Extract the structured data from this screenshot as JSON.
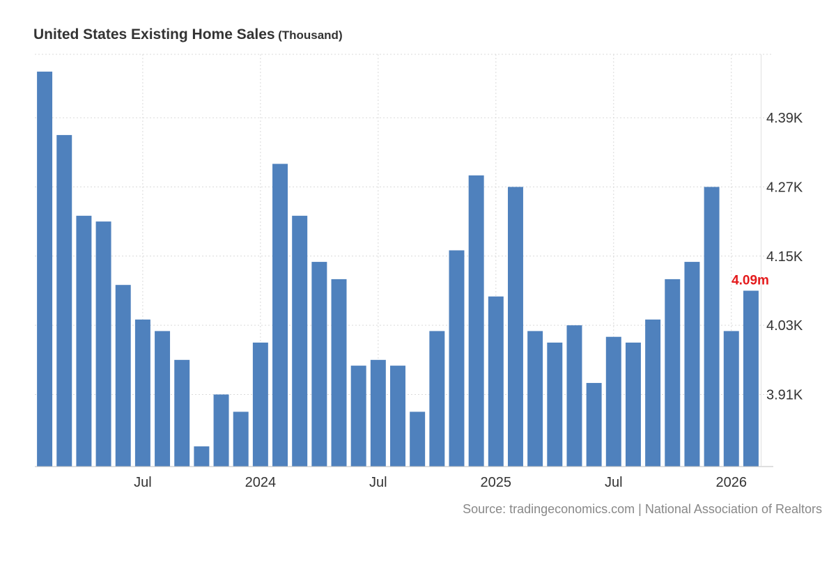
{
  "header": {
    "title": "United States Existing Home Sales",
    "unit": "(Thousand)"
  },
  "source": "Source: tradingeconomics.com | National Association of Realtors",
  "chart_data": {
    "type": "bar",
    "title": "United States Existing Home Sales",
    "unit": "(Thousand)",
    "xlabel": "",
    "ylabel": "",
    "x": [
      "2023-02",
      "2023-03",
      "2023-04",
      "2023-05",
      "2023-06",
      "2023-07",
      "2023-08",
      "2023-09",
      "2023-10",
      "2023-11",
      "2023-12",
      "2024-01",
      "2024-02",
      "2024-03",
      "2024-04",
      "2024-05",
      "2024-06",
      "2024-07",
      "2024-08",
      "2024-09",
      "2024-10",
      "2024-11",
      "2024-12",
      "2025-01",
      "2025-02",
      "2025-03",
      "2025-04",
      "2025-05",
      "2025-06",
      "2025-07",
      "2025-08",
      "2025-09",
      "2025-10",
      "2025-11",
      "2025-12",
      "2026-01",
      "2026-02"
    ],
    "values": [
      4.47,
      4.36,
      4.22,
      4.21,
      4.1,
      4.04,
      4.02,
      3.97,
      3.82,
      3.91,
      3.88,
      4.0,
      4.31,
      4.22,
      4.14,
      4.11,
      3.96,
      3.97,
      3.96,
      3.88,
      4.02,
      4.16,
      4.29,
      4.08,
      4.27,
      4.02,
      4.0,
      4.03,
      3.93,
      4.01,
      4.0,
      4.04,
      4.11,
      4.14,
      4.27,
      4.02,
      4.09
    ],
    "ylim": [
      3.785,
      4.5
    ],
    "y_ticks": [
      3.91,
      4.03,
      4.15,
      4.27,
      4.39
    ],
    "y_tick_labels": [
      "3.91K",
      "4.03K",
      "4.15K",
      "4.27K",
      "4.39K"
    ],
    "x_ticks": [
      {
        "at": "2023-07",
        "label": "Jul"
      },
      {
        "at": "2024-01",
        "label": "2024"
      },
      {
        "at": "2024-07",
        "label": "Jul"
      },
      {
        "at": "2025-01",
        "label": "2025"
      },
      {
        "at": "2025-07",
        "label": "Jul"
      },
      {
        "at": "2026-01",
        "label": "2026"
      }
    ],
    "last_value_label": "4.09m",
    "grid": true,
    "y_axis_position": "right",
    "colors": {
      "bar": "#4f81bd",
      "last_label": "#e41a1c",
      "grid": "#d9d9d9",
      "axis": "#bfbfbf"
    }
  }
}
